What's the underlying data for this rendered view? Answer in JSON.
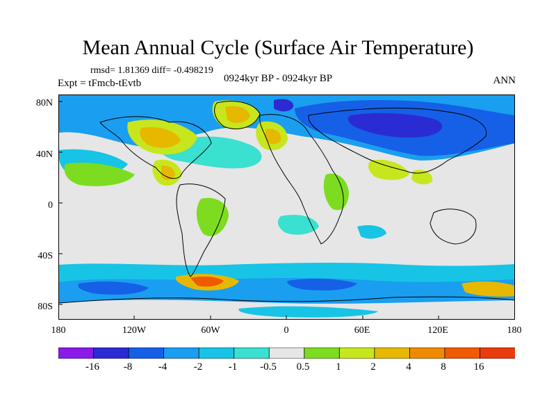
{
  "title": "Mean Annual Cycle (Surface Air Temperature)",
  "stats": "rmsd= 1.81369 diff= -0.498219",
  "experiment": "Expt = tFmcb-tEvtb",
  "period": "0924kyr BP - 0924kyr BP",
  "season": "ANN",
  "lat_labels": [
    "80N",
    "40N",
    "0",
    "40S",
    "80S"
  ],
  "lon_labels": [
    "180",
    "120W",
    "60W",
    "0",
    "60E",
    "120E",
    "180"
  ],
  "colorbar": {
    "labels": [
      "-16",
      "-8",
      "-4",
      "-2",
      "-1",
      "-0.5",
      "0.5",
      "1",
      "2",
      "4",
      "8",
      "16"
    ],
    "colors": [
      "#8b1ae8",
      "#2b2bd4",
      "#1560e6",
      "#1a9ef0",
      "#17c4e6",
      "#3ae0d0",
      "#e6e6e6",
      "#7ddc1f",
      "#c8e61e",
      "#e6b800",
      "#f08a00",
      "#f05a00",
      "#e83c0c"
    ]
  }
}
